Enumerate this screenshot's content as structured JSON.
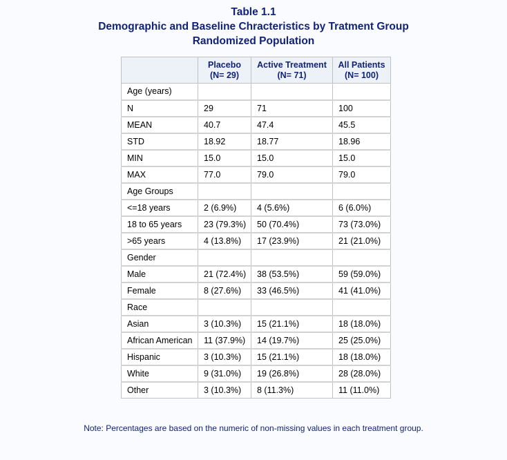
{
  "titles": {
    "line1": "Table 1.1",
    "line2": "Demographic and Baseline Chracteristics by Tratment Group",
    "line3": "Randomized Population"
  },
  "table": {
    "headers": [
      {
        "label": "Placebo",
        "n": "(N= 29)"
      },
      {
        "label": "Active Treatment",
        "n": "(N= 71)"
      },
      {
        "label": "All Patients",
        "n": "(N= 100)"
      }
    ],
    "rows": [
      {
        "label": "Age (years)",
        "values": [
          "",
          "",
          ""
        ]
      },
      {
        "label": "N",
        "values": [
          "29",
          "71",
          "100"
        ]
      },
      {
        "label": "MEAN",
        "values": [
          "40.7",
          "47.4",
          "45.5"
        ]
      },
      {
        "label": "STD",
        "values": [
          "18.92",
          "18.77",
          "18.96"
        ]
      },
      {
        "label": "MIN",
        "values": [
          "15.0",
          "15.0",
          "15.0"
        ]
      },
      {
        "label": "MAX",
        "values": [
          "77.0",
          "79.0",
          "79.0"
        ]
      },
      {
        "label": "Age Groups",
        "values": [
          "",
          "",
          ""
        ]
      },
      {
        "label": "<=18 years",
        "values": [
          "2 (6.9%)",
          "4 (5.6%)",
          "6 (6.0%)"
        ]
      },
      {
        "label": "18 to 65 years",
        "values": [
          "23 (79.3%)",
          "50 (70.4%)",
          "73 (73.0%)"
        ]
      },
      {
        "label": ">65 years",
        "values": [
          "4 (13.8%)",
          "17 (23.9%)",
          "21 (21.0%)"
        ]
      },
      {
        "label": "Gender",
        "values": [
          "",
          "",
          ""
        ]
      },
      {
        "label": "Male",
        "values": [
          "21 (72.4%)",
          "38 (53.5%)",
          "59 (59.0%)"
        ]
      },
      {
        "label": "Female",
        "values": [
          "8 (27.6%)",
          "33 (46.5%)",
          "41 (41.0%)"
        ]
      },
      {
        "label": "Race",
        "values": [
          "",
          "",
          ""
        ]
      },
      {
        "label": "Asian",
        "values": [
          "3 (10.3%)",
          "15 (21.1%)",
          "18 (18.0%)"
        ]
      },
      {
        "label": "African American",
        "values": [
          "11 (37.9%)",
          "14 (19.7%)",
          "25 (25.0%)"
        ]
      },
      {
        "label": "Hispanic",
        "values": [
          "3 (10.3%)",
          "15 (21.1%)",
          "18 (18.0%)"
        ]
      },
      {
        "label": "White",
        "values": [
          "9 (31.0%)",
          "19 (26.8%)",
          "28 (28.0%)"
        ]
      },
      {
        "label": "Other",
        "values": [
          "3 (10.3%)",
          "8 (11.3%)",
          "11 (11.0%)"
        ]
      }
    ]
  },
  "note": "Note: Percentages are based on the numeric of non-missing values in each treatment group."
}
